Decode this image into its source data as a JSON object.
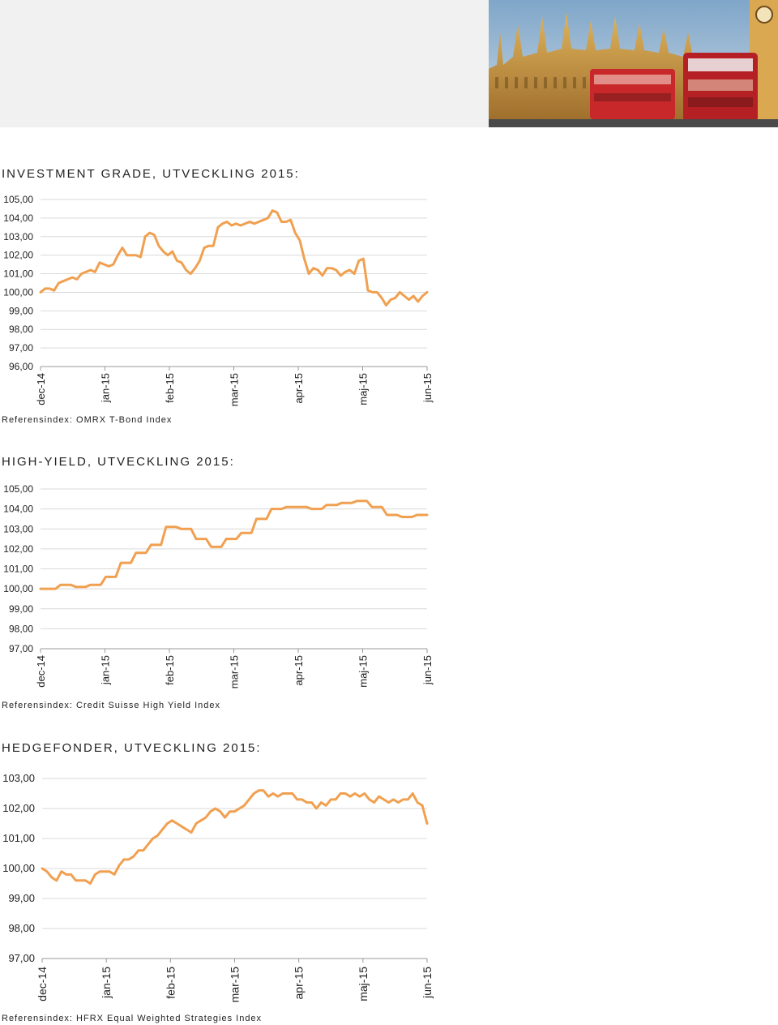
{
  "header_image": {
    "description_icon": "london-parliament-bus-photo"
  },
  "colors": {
    "line": "#f0a050",
    "grid": "#d9d9d9",
    "axis": "#999999",
    "band": "#f1f1f1"
  },
  "sections": [
    {
      "title": "INVESTMENT GRADE, UTVECKLING 2015:",
      "note": "Referensindex: OMRX T-Bond Index"
    },
    {
      "title": "HIGH-YIELD, UTVECKLING 2015:",
      "note": "Referensindex: Credit Suisse High Yield Index"
    },
    {
      "title": "HEDGEFONDER, UTVECKLING 2015:",
      "note": "Referensindex: HFRX Equal Weighted Strategies Index"
    }
  ],
  "chart_data": [
    {
      "type": "line",
      "title": "INVESTMENT GRADE, UTVECKLING 2015:",
      "x_ticks": [
        "dec-14",
        "jan-15",
        "feb-15",
        "mar-15",
        "apr-15",
        "maj-15",
        "jun-15"
      ],
      "y_ticks": [
        "105,00",
        "104,00",
        "103,00",
        "102,00",
        "101,00",
        "100,00",
        "99,00",
        "98,00",
        "97,00",
        "96,00"
      ],
      "ylim": [
        96,
        105
      ],
      "grid": true,
      "series": [
        {
          "values": [
            100.0,
            100.2,
            100.2,
            100.1,
            100.5,
            100.6,
            100.7,
            100.8,
            100.7,
            101.0,
            101.1,
            101.2,
            101.1,
            101.6,
            101.5,
            101.4,
            101.5,
            102.0,
            102.4,
            102.0,
            102.0,
            102.0,
            101.9,
            103.0,
            103.2,
            103.1,
            102.5,
            102.2,
            102.0,
            102.2,
            101.7,
            101.6,
            101.2,
            101.0,
            101.3,
            101.7,
            102.4,
            102.5,
            102.5,
            103.5,
            103.7,
            103.8,
            103.6,
            103.7,
            103.6,
            103.7,
            103.8,
            103.7,
            103.8,
            103.9,
            104.0,
            104.4,
            104.3,
            103.8,
            103.8,
            103.9,
            103.2,
            102.8,
            101.8,
            101.0,
            101.3,
            101.2,
            100.9,
            101.3,
            101.3,
            101.2,
            100.9,
            101.1,
            101.2,
            101.0,
            101.7,
            101.8,
            100.1,
            100.0,
            100.0,
            99.7,
            99.3,
            99.6,
            99.7,
            100.0,
            99.8,
            99.6,
            99.8,
            99.5,
            99.8,
            100.0
          ]
        }
      ]
    },
    {
      "type": "line",
      "title": "HIGH-YIELD, UTVECKLING 2015:",
      "x_ticks": [
        "dec-14",
        "jan-15",
        "feb-15",
        "mar-15",
        "apr-15",
        "maj-15",
        "jun-15"
      ],
      "y_ticks": [
        "105,00",
        "104,00",
        "103,00",
        "102,00",
        "101,00",
        "100,00",
        "99,00",
        "98,00",
        "97,00"
      ],
      "ylim": [
        97,
        105
      ],
      "grid": true,
      "series": [
        {
          "values": [
            100.0,
            100.0,
            100.0,
            100.0,
            100.2,
            100.2,
            100.2,
            100.1,
            100.1,
            100.1,
            100.2,
            100.2,
            100.2,
            100.6,
            100.6,
            100.6,
            101.3,
            101.3,
            101.3,
            101.8,
            101.8,
            101.8,
            102.2,
            102.2,
            102.2,
            103.1,
            103.1,
            103.1,
            103.0,
            103.0,
            103.0,
            102.5,
            102.5,
            102.5,
            102.1,
            102.1,
            102.1,
            102.5,
            102.5,
            102.5,
            102.8,
            102.8,
            102.8,
            103.5,
            103.5,
            103.5,
            104.0,
            104.0,
            104.0,
            104.1,
            104.1,
            104.1,
            104.1,
            104.1,
            104.0,
            104.0,
            104.0,
            104.2,
            104.2,
            104.2,
            104.3,
            104.3,
            104.3,
            104.4,
            104.4,
            104.4,
            104.1,
            104.1,
            104.1,
            103.7,
            103.7,
            103.7,
            103.6,
            103.6,
            103.6,
            103.7,
            103.7,
            103.7
          ]
        }
      ]
    },
    {
      "type": "line",
      "title": "HEDGEFONDER, UTVECKLING 2015:",
      "x_ticks": [
        "dec-14",
        "jan-15",
        "feb-15",
        "mar-15",
        "apr-15",
        "maj-15",
        "jun-15"
      ],
      "y_ticks": [
        "103,00",
        "102,00",
        "101,00",
        "100,00",
        "99,00",
        "98,00",
        "97,00"
      ],
      "ylim": [
        97,
        103
      ],
      "grid": true,
      "series": [
        {
          "values": [
            100.0,
            99.9,
            99.7,
            99.6,
            99.9,
            99.8,
            99.8,
            99.6,
            99.6,
            99.6,
            99.5,
            99.8,
            99.9,
            99.9,
            99.9,
            99.8,
            100.1,
            100.3,
            100.3,
            100.4,
            100.6,
            100.6,
            100.8,
            101.0,
            101.1,
            101.3,
            101.5,
            101.6,
            101.5,
            101.4,
            101.3,
            101.2,
            101.5,
            101.6,
            101.7,
            101.9,
            102.0,
            101.9,
            101.7,
            101.9,
            101.9,
            102.0,
            102.1,
            102.3,
            102.5,
            102.6,
            102.6,
            102.4,
            102.5,
            102.4,
            102.5,
            102.5,
            102.5,
            102.3,
            102.3,
            102.2,
            102.2,
            102.0,
            102.2,
            102.1,
            102.3,
            102.3,
            102.5,
            102.5,
            102.4,
            102.5,
            102.4,
            102.5,
            102.3,
            102.2,
            102.4,
            102.3,
            102.2,
            102.3,
            102.2,
            102.3,
            102.3,
            102.5,
            102.2,
            102.1,
            101.5
          ]
        }
      ]
    }
  ]
}
